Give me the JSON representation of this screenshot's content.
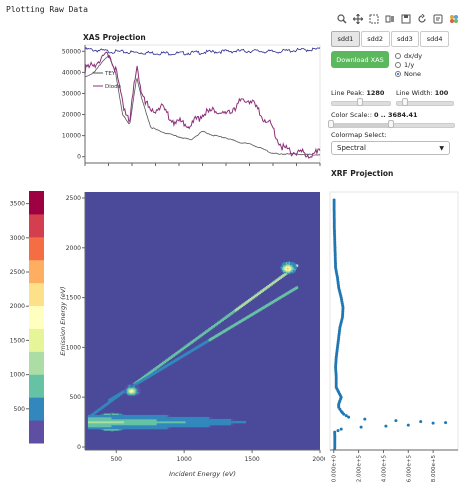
{
  "page": {
    "title": "Plotting Raw Data"
  },
  "toolbar": {
    "tools": [
      "zoom-icon",
      "pan-icon",
      "box-select-icon",
      "wheel-zoom-icon",
      "save-icon",
      "reset-icon",
      "help-icon",
      "bokeh-logo-icon"
    ]
  },
  "controls": {
    "tabs": [
      {
        "label": "sdd1",
        "active": true
      },
      {
        "label": "sdd2",
        "active": false
      },
      {
        "label": "sdd3",
        "active": false
      },
      {
        "label": "sdd4",
        "active": false
      }
    ],
    "download_label": "Download XAS",
    "radios": [
      {
        "label": "dx/dy",
        "checked": false
      },
      {
        "label": "1/y",
        "checked": false
      },
      {
        "label": "None",
        "checked": true
      }
    ],
    "line_peak": {
      "label": "Line Peak: ",
      "value": "1280",
      "fraction": 0.5
    },
    "line_width": {
      "label": "Line Width: ",
      "value": "100",
      "fraction": 0.15
    },
    "color_scale": {
      "label": "Color Scale:: ",
      "value": "0 .. 3684.41",
      "low": 0.0,
      "high": 0.5
    },
    "colormap_label": "Colormap Select:",
    "colormap_value": "Spectral"
  },
  "chart_data": [
    {
      "type": "line",
      "title": "XAS Projection",
      "ylim": [
        -3000,
        53000
      ],
      "y_ticks": [
        "0",
        "10000",
        "20000",
        "30000",
        "40000",
        "50000"
      ],
      "legend": [
        "TEY",
        "Diode"
      ],
      "legend_placement": "top-left",
      "series": [
        {
          "name": "",
          "color": "#2b2c8c",
          "x": [
            0,
            0.05,
            0.1,
            0.2,
            0.3,
            0.4,
            0.5,
            0.6,
            0.7,
            0.8,
            0.9,
            1
          ],
          "values": [
            51000,
            50500,
            50000,
            49500,
            49200,
            49000,
            49500,
            50000,
            50200,
            49800,
            50500,
            51000
          ]
        },
        {
          "name": "TEY",
          "color": "#555555",
          "x": [
            0,
            0.04,
            0.08,
            0.1,
            0.13,
            0.16,
            0.19,
            0.22,
            0.24,
            0.28,
            0.32,
            0.38,
            0.45,
            0.5,
            0.55,
            0.6,
            0.65,
            0.7,
            0.75,
            0.79,
            0.83,
            0.86,
            0.9,
            0.95,
            1
          ],
          "values": [
            38000,
            40000,
            46000,
            48000,
            40000,
            20000,
            15000,
            38000,
            28000,
            14000,
            12000,
            10000,
            8000,
            12000,
            10000,
            9000,
            7000,
            6000,
            4000,
            2000,
            1000,
            1500,
            1200,
            1000,
            1000
          ]
        },
        {
          "name": "Diode",
          "color": "#8b2f7a",
          "x": [
            0,
            0.04,
            0.08,
            0.1,
            0.13,
            0.16,
            0.19,
            0.22,
            0.24,
            0.28,
            0.32,
            0.38,
            0.45,
            0.5,
            0.55,
            0.6,
            0.65,
            0.7,
            0.75,
            0.79,
            0.83,
            0.86,
            0.9,
            0.95,
            1
          ],
          "values": [
            41000,
            44000,
            47000,
            49000,
            42000,
            25000,
            18000,
            42000,
            32000,
            20000,
            24000,
            17000,
            15000,
            20000,
            22000,
            20000,
            25000,
            27000,
            20000,
            15000,
            6000,
            3000,
            2000,
            1500,
            1500
          ]
        }
      ]
    },
    {
      "type": "heatmap",
      "title": "",
      "xlabel": "Incident Energy (eV)",
      "ylabel": "Emission Energy (eV)",
      "xlim": [
        270,
        2000
      ],
      "ylim": [
        -30,
        2560
      ],
      "x_ticks": [
        500,
        1000,
        1500,
        2000
      ],
      "y_ticks": [
        0,
        500,
        1000,
        1500,
        2000,
        2500
      ],
      "background": "#4b4999",
      "features": [
        {
          "kind": "diagonal",
          "from": [
            300,
            300
          ],
          "to": [
            1830,
            1820
          ],
          "value": 1200
        },
        {
          "kind": "diagonal",
          "from": [
            450,
            470
          ],
          "to": [
            1830,
            1600
          ],
          "value": 900
        },
        {
          "kind": "blob",
          "x": 470,
          "y": 250,
          "value": 3600
        },
        {
          "kind": "band",
          "x0": 300,
          "x1": 1900,
          "y": 250,
          "value": 900
        },
        {
          "kind": "blob",
          "x": 620,
          "y": 570,
          "value": 1800
        },
        {
          "kind": "blob",
          "x": 1770,
          "y": 1800,
          "value": 2500
        }
      ]
    },
    {
      "type": "bar",
      "title": "",
      "orientation": "vertical colorbar",
      "ticks": [
        500,
        1000,
        1500,
        2000,
        2500,
        3000,
        3500
      ],
      "range": [
        0,
        3684.41
      ],
      "colors": [
        "#5e4fa2",
        "#3288bd",
        "#66c2a5",
        "#abdda4",
        "#e6f598",
        "#ffffbf",
        "#fee08b",
        "#fdae61",
        "#f46d43",
        "#d53e4f",
        "#9e0142"
      ]
    },
    {
      "type": "scatter",
      "title": "XRF Projection",
      "xlim": [
        -30000,
        1000000
      ],
      "ylim": [
        -30,
        2560
      ],
      "x_ticks": [
        "0.000e+0",
        "2.000e+5",
        "4.000e+5",
        "6.000e+5",
        "8.000e+5"
      ],
      "color": "#1f77b4",
      "points": [
        [
          8000,
          -20
        ],
        [
          9000,
          60
        ],
        [
          8000,
          150
        ],
        [
          60000,
          180
        ],
        [
          220000,
          200
        ],
        [
          420000,
          210
        ],
        [
          600000,
          220
        ],
        [
          800000,
          240
        ],
        [
          900000,
          245
        ],
        [
          700000,
          255
        ],
        [
          500000,
          265
        ],
        [
          250000,
          280
        ],
        [
          120000,
          300
        ],
        [
          80000,
          330
        ],
        [
          60000,
          360
        ],
        [
          40000,
          400
        ],
        [
          40000,
          430
        ],
        [
          60000,
          500
        ],
        [
          40000,
          550
        ],
        [
          20000,
          600
        ],
        [
          20000,
          700
        ],
        [
          15000,
          800
        ],
        [
          20000,
          900
        ],
        [
          30000,
          1000
        ],
        [
          40000,
          1100
        ],
        [
          50000,
          1200
        ],
        [
          70000,
          1300
        ],
        [
          75000,
          1400
        ],
        [
          60000,
          1500
        ],
        [
          40000,
          1600
        ],
        [
          30000,
          1700
        ],
        [
          15000,
          1800
        ],
        [
          10000,
          2000
        ],
        [
          5000,
          2200
        ],
        [
          3000,
          2400
        ],
        [
          3000,
          2500
        ]
      ]
    }
  ]
}
